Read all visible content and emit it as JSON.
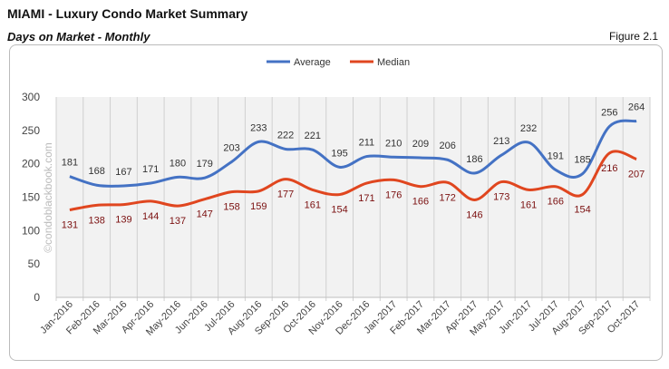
{
  "header": {
    "title": "MIAMI - Luxury Condo Market Summary",
    "subtitle": "Days on Market - Monthly",
    "figure": "Figure 2.1"
  },
  "watermark": "©condoblackbook.com",
  "chart_data": {
    "type": "line",
    "categories": [
      "Jan-2016",
      "Feb-2016",
      "Mar-2016",
      "Apr-2016",
      "May-2016",
      "Jun-2016",
      "Jul-2016",
      "Aug-2016",
      "Sep-2016",
      "Oct-2016",
      "Nov-2016",
      "Dec-2016",
      "Jan-2017",
      "Feb-2017",
      "Mar-2017",
      "Apr-2017",
      "May-2017",
      "Jun-2017",
      "Jul-2017",
      "Aug-2017",
      "Sep-2017",
      "Oct-2017"
    ],
    "series": [
      {
        "name": "Average",
        "color": "#4472c4",
        "label_color": "#333333",
        "values": [
          181,
          168,
          167,
          171,
          180,
          179,
          203,
          233,
          222,
          221,
          195,
          211,
          210,
          209,
          206,
          186,
          213,
          232,
          191,
          185,
          256,
          264
        ]
      },
      {
        "name": "Median",
        "color": "#e0461f",
        "label_color": "#7b1010",
        "values": [
          131,
          138,
          139,
          144,
          137,
          147,
          158,
          159,
          177,
          161,
          154,
          171,
          176,
          166,
          172,
          146,
          173,
          161,
          166,
          154,
          216,
          207
        ]
      }
    ],
    "ylim": [
      0,
      300
    ],
    "yticks": [
      0,
      50,
      100,
      150,
      200,
      250,
      300
    ],
    "grid": "vertical",
    "legend": "top-center",
    "smooth": true
  }
}
